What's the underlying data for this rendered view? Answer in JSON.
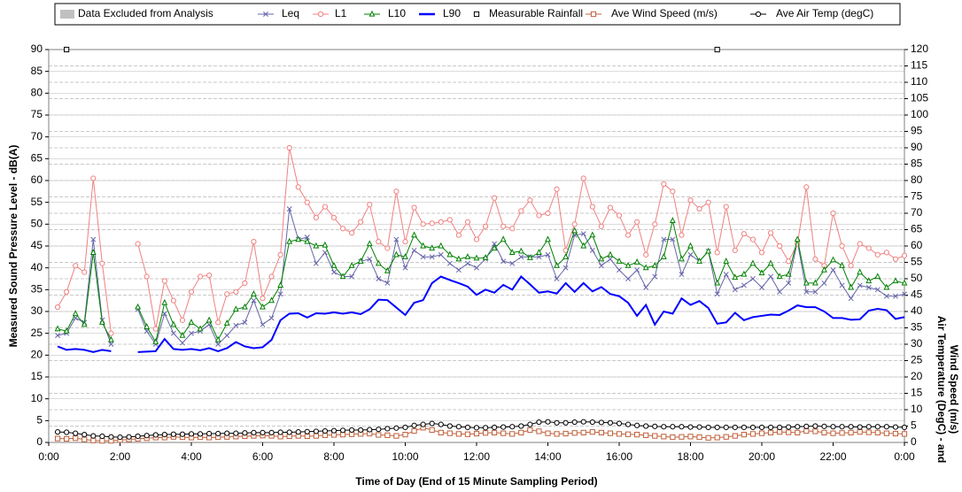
{
  "chart_data": {
    "type": "line",
    "xlabel": "Time of Day (End of 15 Minute Sampling Period)",
    "ylabel": "Measured Sound Pressure Level - dB(A)",
    "y2label": [
      "Air Temperature (DegC) - and",
      "Wind Speed (m/s)"
    ],
    "excluded": {
      "name": "Data Excluded from Analysis",
      "color": "#c0c0c0"
    },
    "xlim": [
      0,
      24
    ],
    "xticks": [
      {
        "value": 0,
        "label": "0:00"
      },
      {
        "value": 2,
        "label": "2:00"
      },
      {
        "value": 4,
        "label": "4:00"
      },
      {
        "value": 6,
        "label": "6:00"
      },
      {
        "value": 8,
        "label": "8:00"
      },
      {
        "value": 10,
        "label": "10:00"
      },
      {
        "value": 12,
        "label": "12:00"
      },
      {
        "value": 14,
        "label": "14:00"
      },
      {
        "value": 16,
        "label": "16:00"
      },
      {
        "value": 18,
        "label": "18:00"
      },
      {
        "value": 20,
        "label": "20:00"
      },
      {
        "value": 22,
        "label": "22:00"
      },
      {
        "value": 24,
        "label": "0:00"
      }
    ],
    "ylim": [
      0,
      90
    ],
    "yticks": [
      0,
      5,
      10,
      15,
      20,
      25,
      30,
      35,
      40,
      45,
      50,
      55,
      60,
      65,
      70,
      75,
      80,
      85,
      90
    ],
    "y2lim": [
      0,
      120
    ],
    "y2ticks": [
      0,
      5,
      10,
      15,
      20,
      25,
      30,
      35,
      40,
      45,
      50,
      55,
      60,
      65,
      70,
      75,
      80,
      85,
      90,
      95,
      100,
      105,
      110,
      115,
      120
    ],
    "grid": true,
    "x": [
      0.25,
      0.5,
      0.75,
      1,
      1.25,
      1.5,
      1.75,
      2,
      2.25,
      2.5,
      2.75,
      3,
      3.25,
      3.5,
      3.75,
      4,
      4.25,
      4.5,
      4.75,
      5,
      5.25,
      5.5,
      5.75,
      6,
      6.25,
      6.5,
      6.75,
      7,
      7.25,
      7.5,
      7.75,
      8,
      8.25,
      8.5,
      8.75,
      9,
      9.25,
      9.5,
      9.75,
      10,
      10.25,
      10.5,
      10.75,
      11,
      11.25,
      11.5,
      11.75,
      12,
      12.25,
      12.5,
      12.75,
      13,
      13.25,
      13.5,
      13.75,
      14,
      14.25,
      14.5,
      14.75,
      15,
      15.25,
      15.5,
      15.75,
      16,
      16.25,
      16.5,
      16.75,
      17,
      17.25,
      17.5,
      17.75,
      18,
      18.25,
      18.5,
      18.75,
      19,
      19.25,
      19.5,
      19.75,
      20,
      20.25,
      20.5,
      20.75,
      21,
      21.25,
      21.5,
      21.75,
      22,
      22.25,
      22.5,
      22.75,
      23,
      23.25,
      23.5,
      23.75,
      24
    ],
    "series": [
      {
        "name": "Leq",
        "color": "#6666aa",
        "marker": "x",
        "axis": "y",
        "values": [
          24.5,
          25,
          28.5,
          27.5,
          46.5,
          28,
          22.5,
          null,
          null,
          30.5,
          25.5,
          22.5,
          29.5,
          25,
          22.8,
          25,
          25.5,
          27,
          22.5,
          24.5,
          26.8,
          27.5,
          32.5,
          27,
          28.5,
          34,
          53.5,
          46.5,
          47,
          41,
          43.5,
          39,
          38,
          38,
          41.5,
          42,
          37.5,
          36.5,
          46.5,
          40,
          44,
          42.5,
          42.5,
          43,
          41,
          39.5,
          41,
          40,
          42,
          45.5,
          41.5,
          41,
          42.5,
          42.5,
          42.5,
          43,
          37.5,
          40,
          47.5,
          47.8,
          44,
          40.5,
          42,
          39.5,
          37.5,
          39.5,
          35.5,
          38,
          46.5,
          46.5,
          38.5,
          43,
          41.5,
          43.8,
          34,
          38.5,
          35,
          36,
          37.5,
          35.5,
          38,
          34.5,
          36.5,
          46,
          34.5,
          34.5,
          36.5,
          39.5,
          36,
          33,
          36,
          35.5,
          35,
          33.5,
          33.5,
          34
        ]
      },
      {
        "name": "L1",
        "color": "#f08080",
        "marker": "circle",
        "axis": "y",
        "values": [
          31,
          34.5,
          40.5,
          39,
          60.5,
          41,
          25,
          null,
          null,
          45.5,
          38,
          26,
          37,
          32.5,
          28,
          34.5,
          38,
          38.3,
          27.5,
          34,
          34.5,
          36.5,
          46,
          33,
          38,
          43,
          67.5,
          58.5,
          55,
          51.5,
          54,
          51.5,
          49,
          48,
          50.5,
          54.5,
          46,
          44.5,
          57.5,
          46,
          53.8,
          50,
          50.2,
          50.5,
          51,
          47.5,
          50.5,
          46.5,
          49.5,
          56,
          49.5,
          49,
          53,
          55.5,
          52,
          52.5,
          58,
          44,
          50,
          60.5,
          54,
          49.5,
          53.8,
          52,
          47.5,
          50.5,
          43,
          50,
          59.2,
          57.5,
          47.5,
          55.5,
          53.5,
          55,
          43.5,
          54,
          44,
          47.8,
          46.5,
          43.5,
          48,
          45,
          41.5,
          45.5,
          58.5,
          42,
          40.5,
          52.5,
          45,
          40.5,
          45.5,
          44.5,
          43,
          43.5,
          42,
          42.8
        ]
      },
      {
        "name": "L10",
        "color": "#008000",
        "marker": "triangle",
        "axis": "y",
        "values": [
          26,
          25.5,
          29.5,
          27,
          43.5,
          27.5,
          23.5,
          null,
          null,
          31,
          26.5,
          23,
          32,
          27,
          24.5,
          27.5,
          26,
          28,
          23.5,
          27.3,
          30.5,
          31,
          34,
          31,
          32.5,
          36,
          46,
          46.5,
          46,
          45,
          45.2,
          40.5,
          38,
          40.5,
          41.5,
          45.5,
          41,
          39.3,
          43,
          42.5,
          47.5,
          45,
          44.5,
          45,
          43,
          42,
          42.5,
          42.2,
          42.3,
          44.5,
          46.5,
          43.5,
          43.8,
          42.3,
          43.5,
          46.5,
          40.5,
          42.5,
          48.5,
          45,
          47.5,
          42,
          43,
          41.5,
          40.5,
          41.3,
          40,
          40.5,
          42.5,
          50.8,
          42,
          45,
          41.5,
          43.8,
          36.5,
          41.5,
          37.8,
          38.5,
          41,
          38.8,
          41,
          38,
          38.5,
          46.5,
          36.5,
          36.5,
          39.5,
          41.8,
          40.5,
          35.5,
          39,
          37,
          38,
          35.5,
          37,
          36.5
        ]
      },
      {
        "name": "L90",
        "color": "#0000ff",
        "marker": "none",
        "axis": "y",
        "values": [
          22,
          21.2,
          21.4,
          21.2,
          20.7,
          21.2,
          20.9,
          null,
          null,
          20.7,
          20.8,
          20.9,
          23.7,
          21.4,
          21.2,
          21.4,
          21.1,
          21.6,
          20.9,
          21.6,
          23,
          22,
          21.6,
          21.8,
          23.5,
          28,
          29.5,
          29.6,
          28.6,
          29.6,
          29.5,
          29.8,
          29.5,
          29.8,
          29.4,
          30.5,
          32.7,
          32.6,
          30.9,
          29.2,
          32,
          32.6,
          36.5,
          38,
          37.2,
          36.5,
          35.7,
          33.8,
          35,
          34.3,
          36.1,
          35,
          38,
          36.2,
          34.3,
          34.6,
          34.1,
          36.5,
          34.5,
          36.5,
          34.6,
          35.6,
          34,
          33.5,
          32,
          29,
          31.5,
          27,
          30,
          29.5,
          33,
          31.5,
          32.4,
          30.8,
          27.2,
          27.5,
          29.7,
          28,
          28.7,
          29,
          29.3,
          29.2,
          30.2,
          31.4,
          31,
          31,
          30,
          28.5,
          28.5,
          28.1,
          28.2,
          30.2,
          30.6,
          30.3,
          28.3,
          28.7
        ]
      },
      {
        "name": "Measurable Rainfall",
        "color": "#000000",
        "marker": "square",
        "axis": "y",
        "line": false,
        "x": [
          0.5,
          18.75
        ],
        "values": [
          90,
          90
        ]
      },
      {
        "name": "Ave Wind Speed (m/s)",
        "color": "#c0603a",
        "marker": "square",
        "axis": "y2",
        "values": [
          1.2,
          1.1,
          1.3,
          0.9,
          0.6,
          0.5,
          0.5,
          0.7,
          0.9,
          1.1,
          1.3,
          1.5,
          1.5,
          1.7,
          1.6,
          1.5,
          1.6,
          1.5,
          1.6,
          1.7,
          1.8,
          1.9,
          2,
          2.1,
          2,
          1.8,
          1.9,
          2,
          1.9,
          2,
          2.2,
          2.3,
          2.4,
          2.5,
          2.6,
          2.7,
          2.3,
          2.2,
          2,
          2.4,
          3.5,
          4.5,
          3.8,
          3,
          2.8,
          2.6,
          2.5,
          2.7,
          2.9,
          3,
          2.8,
          2.6,
          3,
          3.8,
          3.4,
          2.8,
          2.6,
          2.7,
          2.9,
          3,
          3.2,
          3,
          2.8,
          2.6,
          2.5,
          2.4,
          2.2,
          2,
          1.8,
          1.6,
          1.7,
          1.8,
          1.6,
          1.4,
          1.5,
          1.7,
          2,
          2.4,
          2.6,
          2.8,
          3,
          3.2,
          3.1,
          3,
          3.5,
          3.4,
          3,
          2.8,
          2.9,
          3,
          3.2,
          3.1,
          3,
          2.8,
          2.7,
          2.6
        ]
      },
      {
        "name": "Ave Air Temp (degC)",
        "color": "#000000",
        "marker": "circle",
        "axis": "y2",
        "values": [
          3.2,
          3.1,
          2.8,
          2.4,
          2,
          1.9,
          1.7,
          1.6,
          1.7,
          1.9,
          2.1,
          2.3,
          2.4,
          2.5,
          2.5,
          2.6,
          2.6,
          2.7,
          2.7,
          2.8,
          2.8,
          2.9,
          3,
          3,
          3,
          3.1,
          3.1,
          3.2,
          3.3,
          3.4,
          3.5,
          3.6,
          3.7,
          3.8,
          3.8,
          3.9,
          4,
          4.2,
          4.4,
          4.6,
          5.2,
          5.5,
          5.8,
          5.5,
          5,
          4.8,
          4.6,
          4.5,
          4.5,
          4.6,
          4.7,
          4.8,
          5,
          5.5,
          6.2,
          6.3,
          6,
          6,
          6.2,
          6.3,
          6.2,
          6.1,
          6,
          5.8,
          5.5,
          5.2,
          5,
          4.9,
          4.8,
          4.8,
          4.8,
          4.7,
          4.7,
          4.6,
          4.6,
          4.6,
          4.6,
          4.6,
          4.6,
          4.6,
          4.6,
          4.6,
          4.7,
          4.8,
          4.9,
          5,
          4.9,
          4.8,
          4.8,
          4.8,
          4.7,
          4.8,
          4.8,
          4.8,
          4.7,
          4.6
        ]
      }
    ]
  }
}
